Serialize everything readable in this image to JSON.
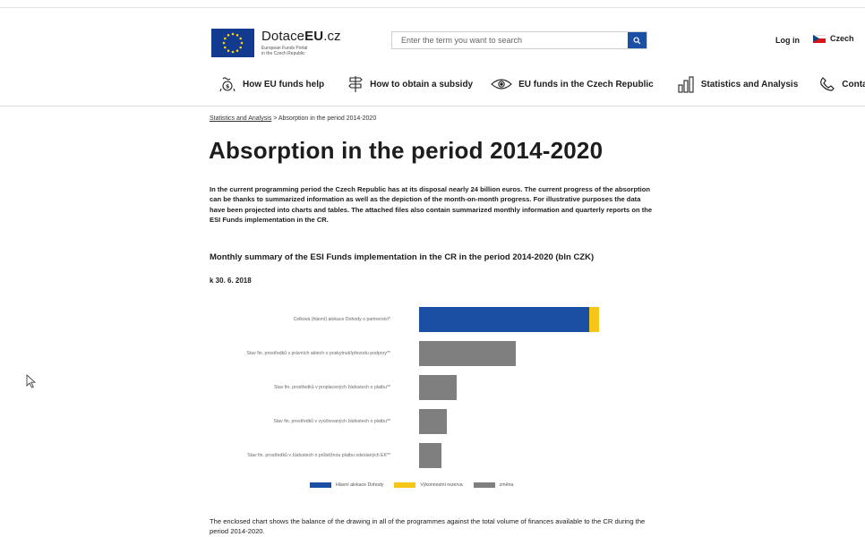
{
  "header": {
    "logo_brand": "Dotace",
    "logo_brand_bold": "EU",
    "logo_tld": ".cz",
    "logo_sub_line1": "European Funds Portal",
    "logo_sub_line2": "in the Czech Republic",
    "search_placeholder": "Enter the term you want to search",
    "login_label": "Log in",
    "language_label": "Czech"
  },
  "nav": [
    {
      "label": "How EU funds help",
      "icon": "funds-help-icon"
    },
    {
      "label": "How to obtain a subsidy",
      "icon": "signpost-icon"
    },
    {
      "label": "EU funds in the Czech Republic",
      "icon": "eye-icon"
    },
    {
      "label": "Statistics and Analysis",
      "icon": "bar-chart-icon"
    },
    {
      "label": "Contacts",
      "icon": "phone-icon"
    }
  ],
  "breadcrumb": {
    "link": "Statistics and Analysis",
    "separator": " > ",
    "current": "Absorption in the period 2014-2020"
  },
  "page_title": "Absorption in the period 2014-2020",
  "intro": "In the current programming period the Czech Republic has at its disposal nearly 24 billion euros. The current progress of the absorption can be thanks to summarized information as well as the depiction of the month-on-month progress. For illustrative purposes the data have been projected into charts and tables. The attached files also contain summarized monthly information and quarterly reports on the ESI Funds implementation in the CR.",
  "section_title": "Monthly summary of the ESI Funds implementation in the CR in the period 2014-2020 (bln CZK)",
  "as_of": "k 30. 6. 2018",
  "chart_data": {
    "type": "bar",
    "orientation": "horizontal",
    "stacked": true,
    "categories": [
      "Celková (hlavní) alokace Dohody o partnerství*",
      "Stav fin. prostředků v právních aktech o poskytnutí/převodu podpory**",
      "Stav fin. prostředků v proplacených žádostech o platbu**",
      "Stav fin. prostředků v vyúčtovaných žádostech o platbu**",
      "Stav fin. prostředků v žádostech o průběžnou platbu odeslaných EK**"
    ],
    "series": [
      {
        "name": "Hlavní alokace Dohody",
        "color": "#1a4fa3",
        "values": [
          577,
          0,
          0,
          0,
          0
        ]
      },
      {
        "name": "Výkonnostní rezerva",
        "color": "#f5c518",
        "values": [
          35,
          0,
          0,
          0,
          0
        ]
      },
      {
        "name": "změna",
        "color": "#7f7f7f",
        "values": [
          0,
          330,
          127,
          95,
          75
        ]
      }
    ],
    "xlim": [
      0,
      700
    ],
    "grid": false,
    "legend": "bottom"
  },
  "outro": "The enclosed chart shows the balance of the drawing in all of the programmes against the total volume of finances available to the CR during the period 2014-2020."
}
